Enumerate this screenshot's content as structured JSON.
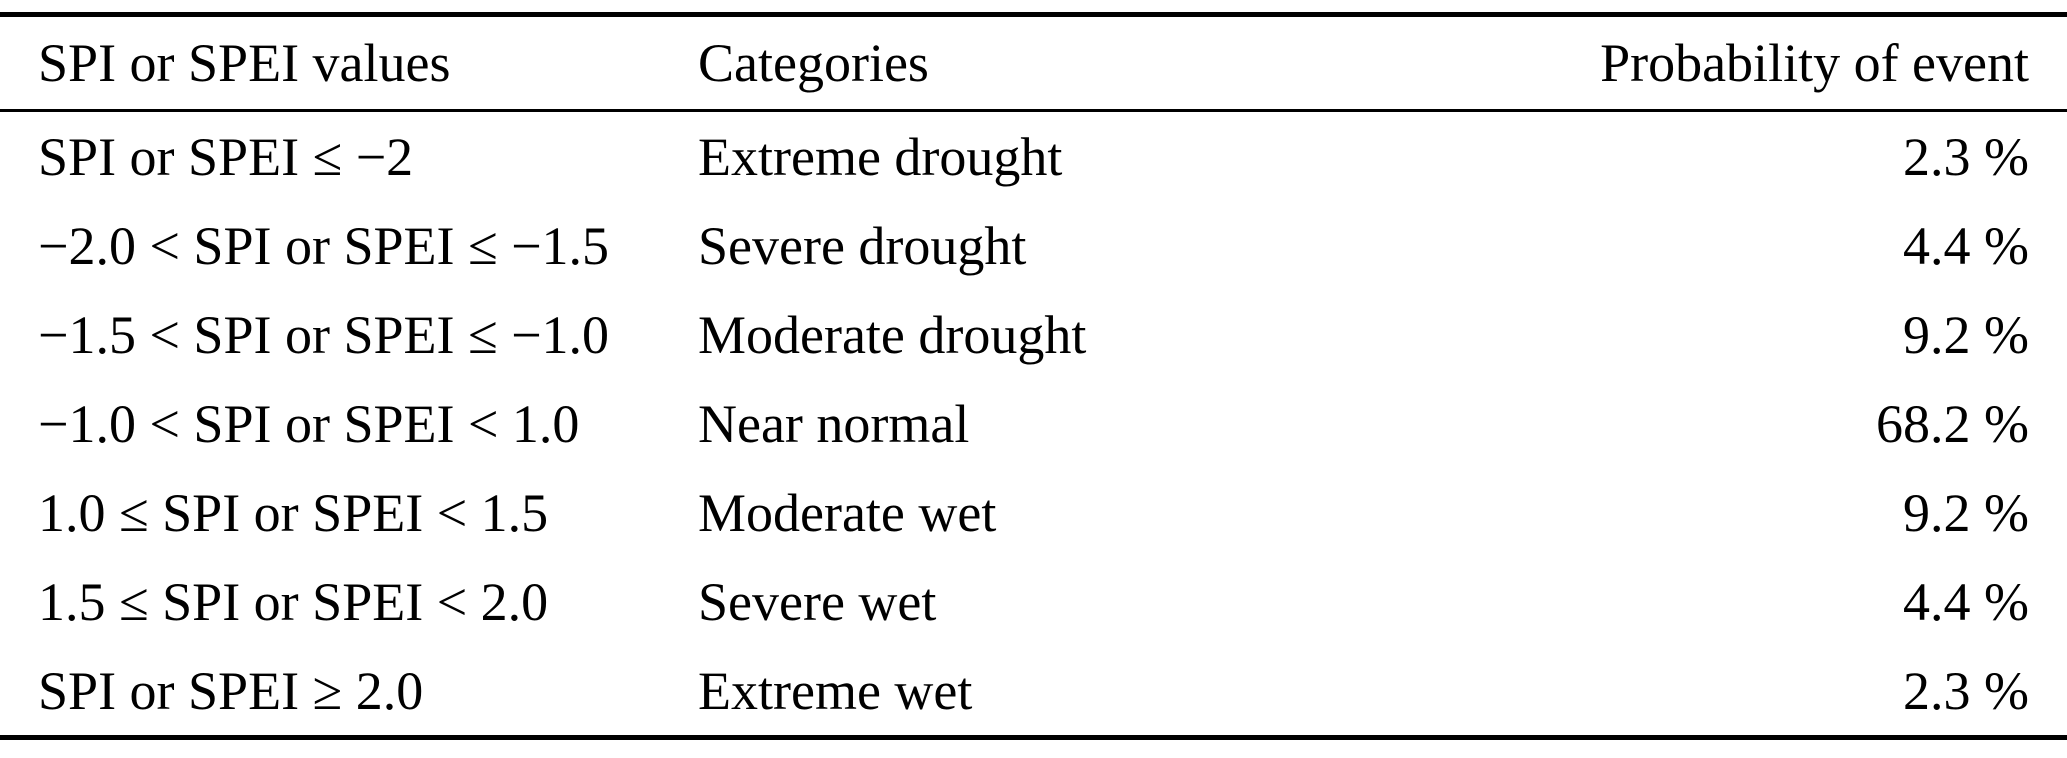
{
  "page": {
    "background": "#ffffff",
    "text_color": "#000000",
    "rule_color": "#000000"
  },
  "table": {
    "headers": {
      "values": "SPI or SPEI values",
      "categories": "Categories",
      "probability": "Probability of event"
    },
    "rows": [
      {
        "values": "SPI or SPEI ≤ −2",
        "category": "Extreme drought",
        "probability": "2.3 %"
      },
      {
        "values": "−2.0 < SPI or SPEI ≤ −1.5",
        "category": "Severe drought",
        "probability": "4.4 %"
      },
      {
        "values": "−1.5 < SPI or SPEI ≤ −1.0",
        "category": "Moderate drought",
        "probability": "9.2 %"
      },
      {
        "values": "−1.0 < SPI or SPEI < 1.0",
        "category": "Near normal",
        "probability": "68.2 %"
      },
      {
        "values": "1.0 ≤ SPI or SPEI < 1.5",
        "category": "Moderate wet",
        "probability": "9.2 %"
      },
      {
        "values": "1.5 ≤ SPI or SPEI < 2.0",
        "category": "Severe wet",
        "probability": "4.4 %"
      },
      {
        "values": "SPI or SPEI ≥ 2.0",
        "category": "Extreme wet",
        "probability": "2.3 %"
      }
    ]
  },
  "chart_data": {
    "type": "table",
    "columns": [
      "SPI or SPEI values",
      "Categories",
      "Probability of event"
    ],
    "rows": [
      [
        "SPI or SPEI ≤ −2",
        "Extreme drought",
        "2.3 %"
      ],
      [
        "−2.0 < SPI or SPEI ≤ −1.5",
        "Severe drought",
        "4.4 %"
      ],
      [
        "−1.5 < SPI or SPEI ≤ −1.0",
        "Moderate drought",
        "9.2 %"
      ],
      [
        "−1.0 < SPI or SPEI < 1.0",
        "Near normal",
        "68.2 %"
      ],
      [
        "1.0 ≤ SPI or SPEI < 1.5",
        "Moderate wet",
        "9.2 %"
      ],
      [
        "1.5 ≤ SPI or SPEI < 2.0",
        "Severe wet",
        "4.4 %"
      ],
      [
        "SPI or SPEI ≥ 2.0",
        "Extreme wet",
        "2.3 %"
      ]
    ],
    "probability_percent": [
      2.3,
      4.4,
      9.2,
      68.2,
      9.2,
      4.4,
      2.3
    ]
  }
}
